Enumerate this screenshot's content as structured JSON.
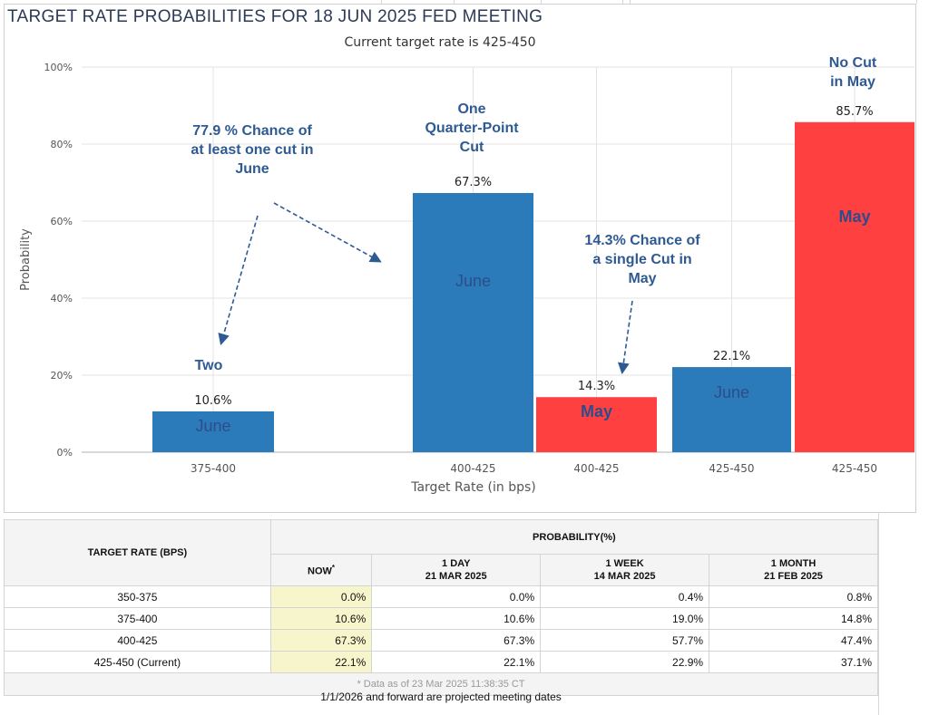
{
  "title": "TARGET RATE PROBABILITIES FOR 18 JUN 2025 FED MEETING",
  "subtitle": "Current target rate is 425-450",
  "chart_data": {
    "type": "bar",
    "ylabel": "Probability",
    "xlabel": "Target Rate (in bps)",
    "ylim": [
      0,
      100
    ],
    "yticks": [
      "0%",
      "20%",
      "40%",
      "60%",
      "80%",
      "100%"
    ],
    "grid": true,
    "colors": {
      "june": "#2b7bba",
      "may": "#ff4040"
    },
    "bars": [
      {
        "category": "375-400",
        "value": 10.6,
        "value_label": "10.6%",
        "series": "June",
        "inner_label": "June",
        "color": "#2b7bba"
      },
      {
        "category": "400-425",
        "value": 67.3,
        "value_label": "67.3%",
        "series": "June",
        "inner_label": "June",
        "color": "#2b7bba"
      },
      {
        "category": "400-425",
        "value": 14.3,
        "value_label": "14.3%",
        "series": "May",
        "inner_label": "May",
        "color": "#ff4040"
      },
      {
        "category": "425-450",
        "value": 22.1,
        "value_label": "22.1%",
        "series": "June",
        "inner_label": "June",
        "color": "#2b7bba"
      },
      {
        "category": "425-450",
        "value": 85.7,
        "value_label": "85.7%",
        "series": "May",
        "inner_label": "May",
        "color": "#ff4040"
      }
    ],
    "annotations": [
      {
        "lines": [
          "77.9 % Chance of",
          "at least one cut in",
          "June"
        ]
      },
      {
        "lines": [
          "Two"
        ]
      },
      {
        "lines": [
          "One",
          "Quarter-Point",
          "Cut"
        ]
      },
      {
        "lines": [
          "14.3% Chance of",
          "a single Cut in",
          "May"
        ]
      },
      {
        "lines": [
          "No Cut",
          "in May"
        ]
      }
    ]
  },
  "table": {
    "col_target": "TARGET RATE (BPS)",
    "col_probability": "PROBABILITY(%)",
    "col_now": "NOW",
    "now_marker": "*",
    "cols": [
      {
        "line1": "1 DAY",
        "line2": "21 MAR 2025"
      },
      {
        "line1": "1 WEEK",
        "line2": "14 MAR 2025"
      },
      {
        "line1": "1 MONTH",
        "line2": "21 FEB 2025"
      }
    ],
    "rows": [
      {
        "rate": "350-375",
        "now": "0.0%",
        "day": "0.0%",
        "week": "0.4%",
        "month": "0.8%"
      },
      {
        "rate": "375-400",
        "now": "10.6%",
        "day": "10.6%",
        "week": "19.0%",
        "month": "14.8%"
      },
      {
        "rate": "400-425",
        "now": "67.3%",
        "day": "67.3%",
        "week": "57.7%",
        "month": "47.4%"
      },
      {
        "rate": "425-450 (Current)",
        "now": "22.1%",
        "day": "22.1%",
        "week": "22.9%",
        "month": "37.1%"
      }
    ],
    "footnote": "* Data as of 23 Mar 2025 11:38:35 CT",
    "projected_note": "1/1/2026 and forward are projected meeting dates"
  }
}
